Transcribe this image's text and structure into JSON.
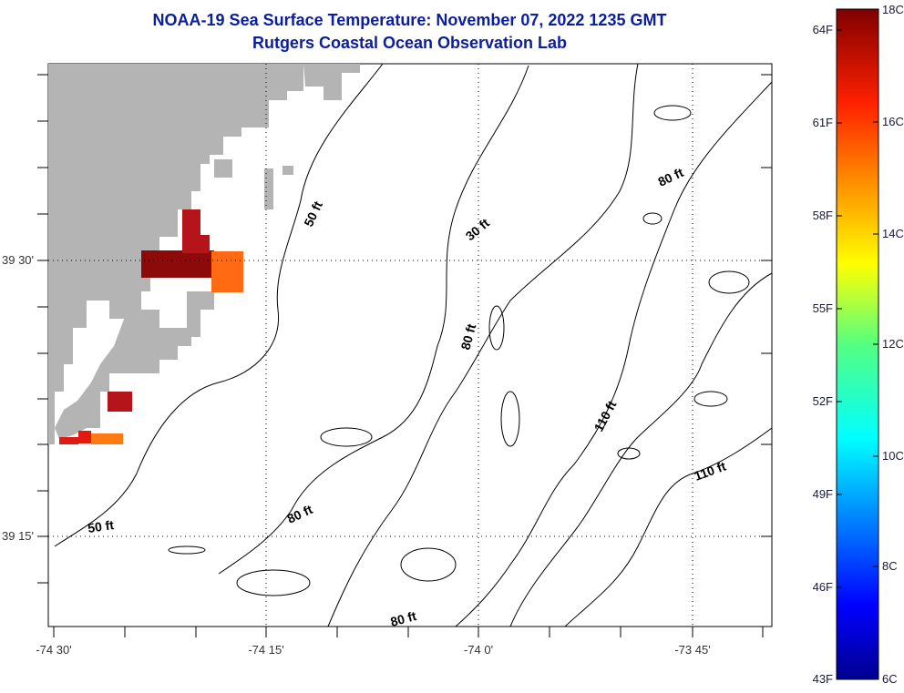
{
  "header": {
    "title": "NOAA-19 Sea Surface Temperature:  November 07, 2022 1235 GMT",
    "subtitle": "Rutgers Coastal Ocean Observation Lab"
  },
  "axes": {
    "lat_labels": [
      "39 30'",
      "39 15'"
    ],
    "lon_labels": [
      "-74 30'",
      "-74 15'",
      "-74 0'",
      "-73 45'"
    ]
  },
  "contour_labels": [
    "50 ft",
    "30 ft",
    "80 ft",
    "80 ft",
    "110 ft",
    "110 ft",
    "80 ft",
    "50 ft",
    "80 ft"
  ],
  "colorbar": {
    "celsius": [
      "18C",
      "16C",
      "14C",
      "12C",
      "10C",
      "8C",
      "6C"
    ],
    "fahrenheit": [
      "64F",
      "61F",
      "58F",
      "55F",
      "52F",
      "49F",
      "46F",
      "43F"
    ],
    "min_c": 6,
    "max_c": 18
  },
  "colors": {
    "title": "#0a1e9e",
    "land": "#b4b4b4",
    "sst_dark_red": "#8c0a0a",
    "sst_red": "#b4141a",
    "sst_bright_red": "#e01a10",
    "sst_orange": "#ff6a12",
    "sst_light_orange": "#ff7a14"
  }
}
